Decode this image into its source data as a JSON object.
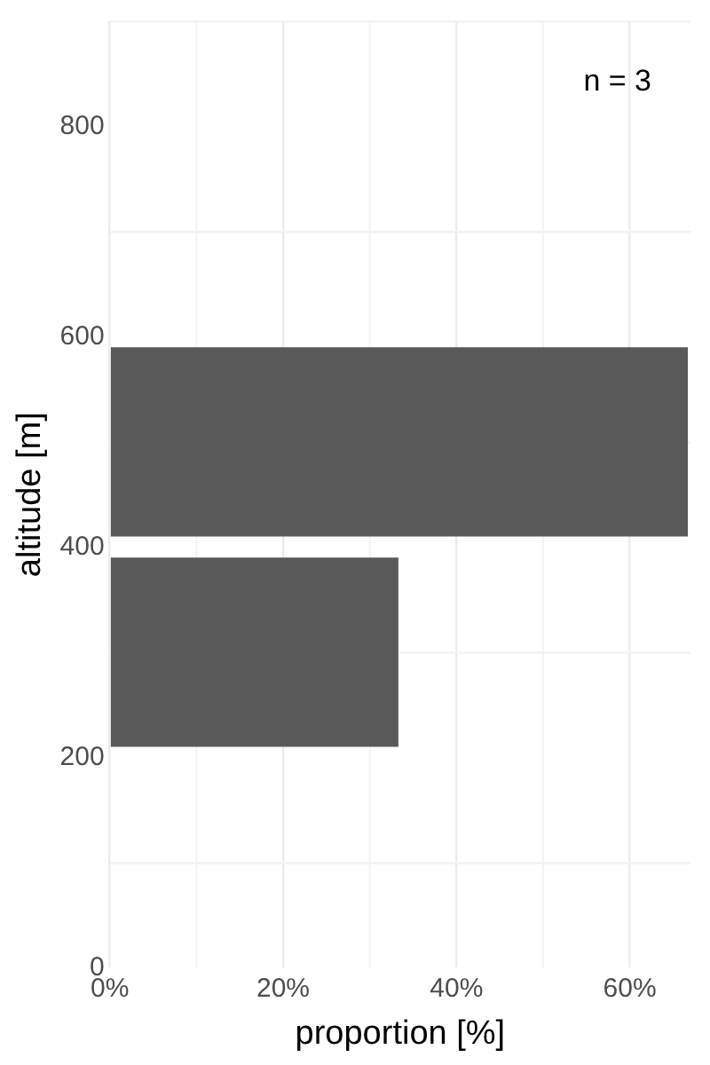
{
  "chart_data": {
    "type": "histogram",
    "orientation": "horizontal",
    "xlabel": "proportion [%]",
    "ylabel": "altitude [m]",
    "bins": [
      200,
      400,
      600
    ],
    "values": [
      33.3,
      66.7
    ],
    "color": "#595959",
    "xlim": [
      0,
      67
    ],
    "xticks": [
      {
        "value": 0,
        "label": "0%"
      },
      {
        "value": 20,
        "label": "20%"
      },
      {
        "value": 40,
        "label": "40%"
      },
      {
        "value": 60,
        "label": "60%"
      }
    ],
    "ylim": [
      0,
      900
    ],
    "yticks": [
      0,
      200,
      400,
      600,
      800
    ],
    "grid": true,
    "legend": false,
    "annotations": [
      "n = 3"
    ]
  }
}
